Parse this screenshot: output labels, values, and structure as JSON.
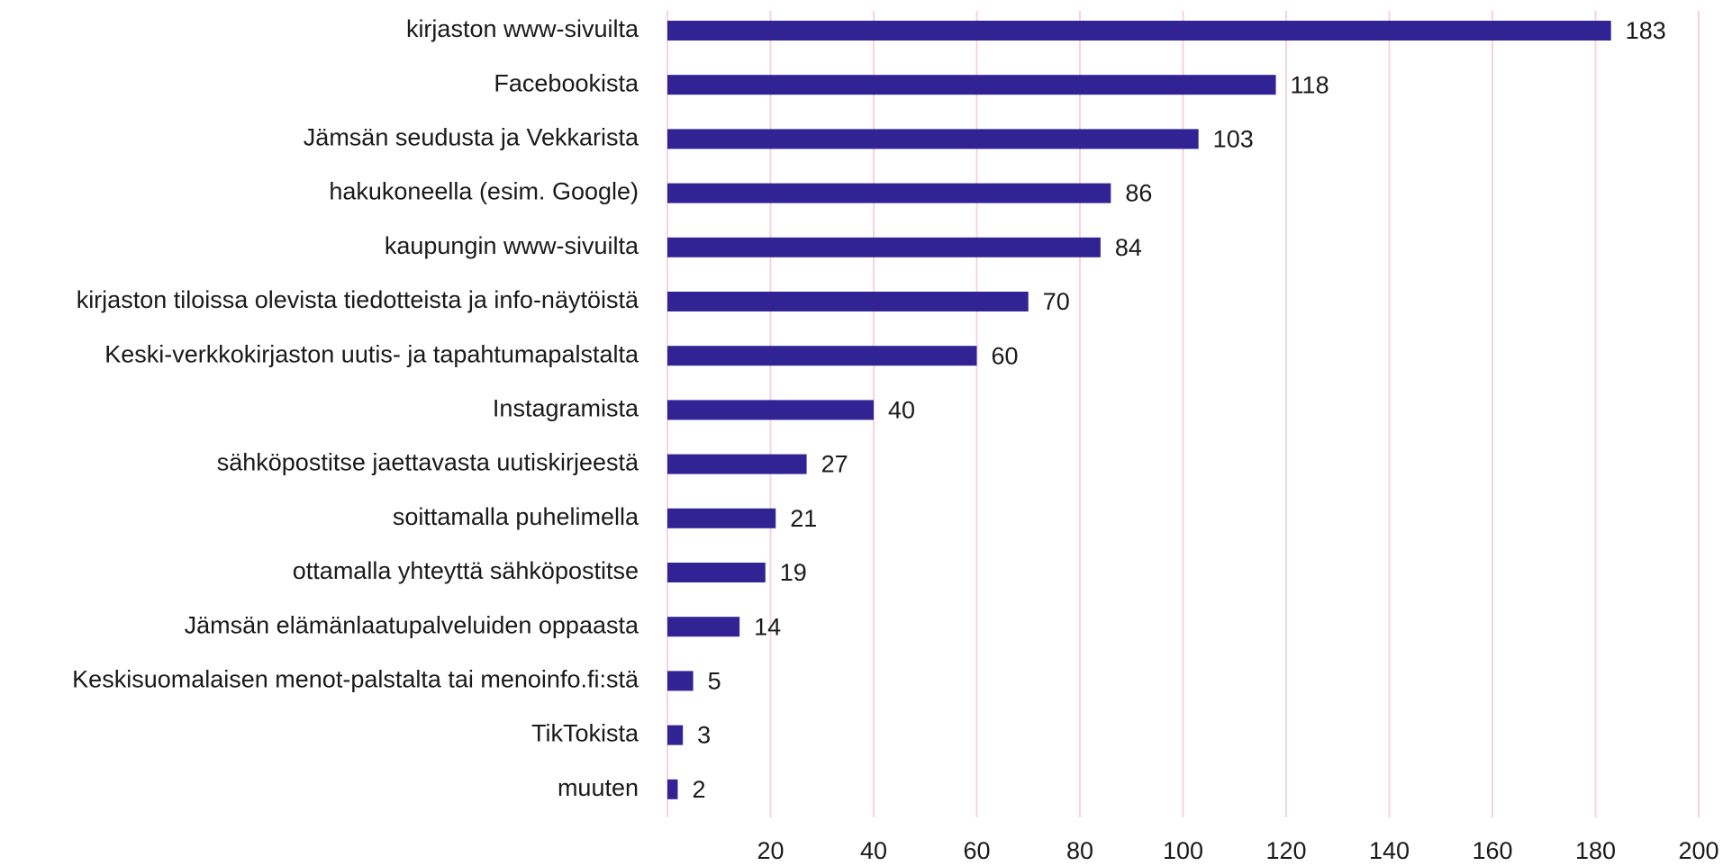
{
  "chart_data": {
    "type": "bar",
    "orientation": "horizontal",
    "categories": [
      "kirjaston www-sivuilta",
      "Facebookista",
      "Jämsän seudusta ja Vekkarista",
      "hakukoneella (esim. Google)",
      "kaupungin www-sivuilta",
      "kirjaston tiloissa olevista tiedotteista ja info-näytöistä",
      "Keski-verkkokirjaston uutis- ja tapahtumapalstalta",
      "Instagramista",
      "sähköpostitse jaettavasta uutiskirjeestä",
      "soittamalla puhelimella",
      "ottamalla yhteyttä sähköpostitse",
      "Jämsän elämänlaatupalveluiden oppaasta",
      "Keskisuomalaisen menot-palstalta tai menoinfo.fi:stä",
      "TikTokista",
      "muuten"
    ],
    "values": [
      183,
      118,
      103,
      86,
      84,
      70,
      60,
      40,
      27,
      21,
      19,
      14,
      5,
      3,
      2
    ],
    "color": "#312393",
    "xlim": [
      0,
      200
    ],
    "xticks": [
      20,
      40,
      60,
      80,
      100,
      120,
      140,
      160,
      180,
      200
    ],
    "grid": true,
    "grid_color": "#f6d3e3"
  }
}
